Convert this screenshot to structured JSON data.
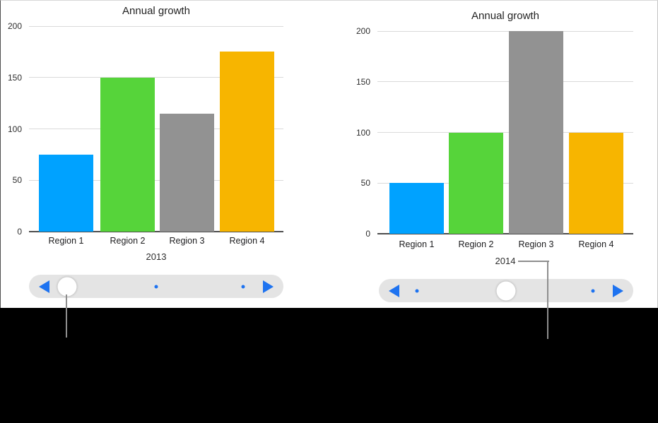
{
  "page": {
    "background": "#000000",
    "panel_background": "#ffffff"
  },
  "colors": {
    "accent_blue": "#1e73f0",
    "gridline": "#dadada",
    "axis_line": "#4d4d4d",
    "slider_track": "#e4e4e4",
    "slider_knob": "#ffffff",
    "callout": "#8e8e8e",
    "text": "#232323"
  },
  "chart_data": [
    {
      "type": "bar",
      "title": "Annual growth",
      "xlabel": "2013",
      "ylabel": "",
      "categories": [
        "Region 1",
        "Region 2",
        "Region 3",
        "Region 4"
      ],
      "values": [
        75,
        150,
        115,
        175
      ],
      "bar_colors": [
        "#00a2ff",
        "#56d43a",
        "#929292",
        "#f7b500"
      ],
      "y_ticks": [
        200,
        150,
        100,
        50,
        0
      ],
      "ylim": [
        0,
        200
      ],
      "grid": true,
      "legend": "none"
    },
    {
      "type": "bar",
      "title": "Annual growth",
      "xlabel": "2014",
      "ylabel": "",
      "categories": [
        "Region 1",
        "Region 2",
        "Region 3",
        "Region 4"
      ],
      "values": [
        50,
        100,
        200,
        100
      ],
      "bar_colors": [
        "#00a2ff",
        "#56d43a",
        "#929292",
        "#f7b500"
      ],
      "y_ticks": [
        200,
        150,
        100,
        50,
        0
      ],
      "ylim": [
        0,
        200
      ],
      "grid": true,
      "legend": "none"
    }
  ],
  "sliders": [
    {
      "name": "chart-scrubber-2013",
      "positions": 3,
      "knob_index": 0
    },
    {
      "name": "chart-scrubber-2014",
      "positions": 3,
      "knob_index": 1
    }
  ],
  "annotations": [
    {
      "name": "callout-to-scrubber-knob"
    },
    {
      "name": "callout-to-2014-label"
    }
  ]
}
